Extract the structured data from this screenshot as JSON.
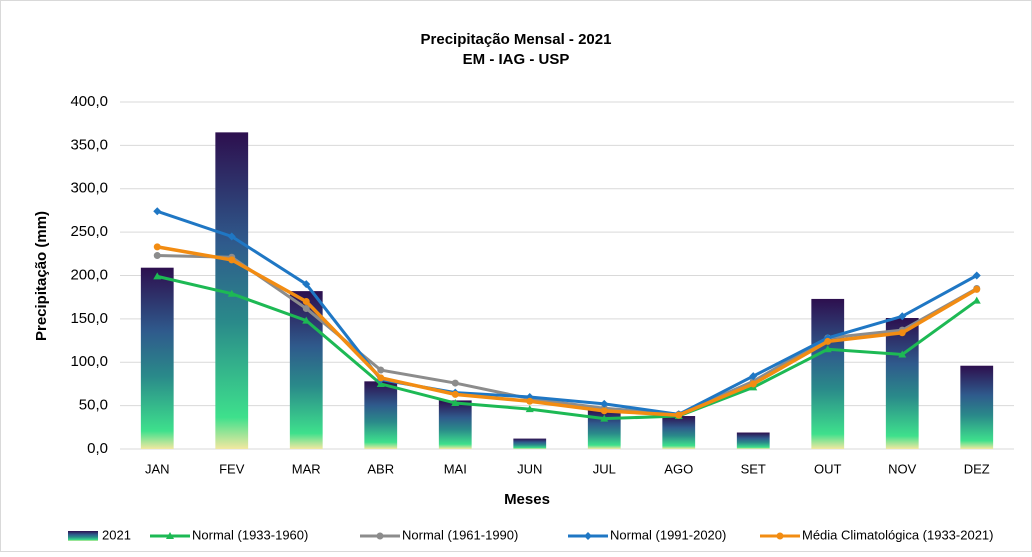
{
  "chart_data": {
    "type": "bar-line",
    "title": "Precipitação Mensal - 2021",
    "subtitle": "EM - IAG - USP",
    "x_label": "Meses",
    "y_label": "Precipitação (mm)",
    "categories": [
      "JAN",
      "FEV",
      "MAR",
      "ABR",
      "MAI",
      "JUN",
      "JUL",
      "AGO",
      "SET",
      "OUT",
      "NOV",
      "DEZ"
    ],
    "ylim": [
      0,
      400
    ],
    "yticks": [
      {
        "value": 0,
        "label": "0,0"
      },
      {
        "value": 50,
        "label": "50,0"
      },
      {
        "value": 100,
        "label": "100,0"
      },
      {
        "value": 150,
        "label": "150,0"
      },
      {
        "value": 200,
        "label": "200,0"
      },
      {
        "value": 250,
        "label": "250,0"
      },
      {
        "value": 300,
        "label": "300,0"
      },
      {
        "value": 350,
        "label": "350,0"
      },
      {
        "value": 400,
        "label": "400,0"
      }
    ],
    "series": [
      {
        "name": "2021",
        "kind": "bar",
        "color": "#2a788e",
        "values": [
          209,
          365,
          182,
          78,
          56,
          12,
          45,
          38,
          19,
          173,
          151,
          96
        ]
      },
      {
        "name": "Normal (1933-1960)",
        "kind": "line",
        "marker": "triangle",
        "color": "#1db954",
        "values": [
          199,
          179,
          148,
          75,
          53,
          46,
          35,
          38,
          71,
          115,
          109,
          171
        ]
      },
      {
        "name": "Normal (1961-1990)",
        "kind": "line",
        "marker": "circle",
        "color": "#8c8c8c",
        "values": [
          223,
          221,
          162,
          91,
          76,
          58,
          47,
          40,
          78,
          128,
          137,
          185
        ]
      },
      {
        "name": "Normal (1991-2020)",
        "kind": "line",
        "marker": "diamond",
        "color": "#1f77c4",
        "values": [
          274,
          245,
          190,
          80,
          65,
          60,
          52,
          40,
          84,
          128,
          153,
          200
        ]
      },
      {
        "name": "Média Climatológica (1933-2021)",
        "kind": "line",
        "marker": "circle",
        "color": "#f28c12",
        "values": [
          233,
          218,
          170,
          82,
          63,
          55,
          44,
          39,
          75,
          124,
          134,
          184
        ]
      }
    ],
    "grid": true
  }
}
